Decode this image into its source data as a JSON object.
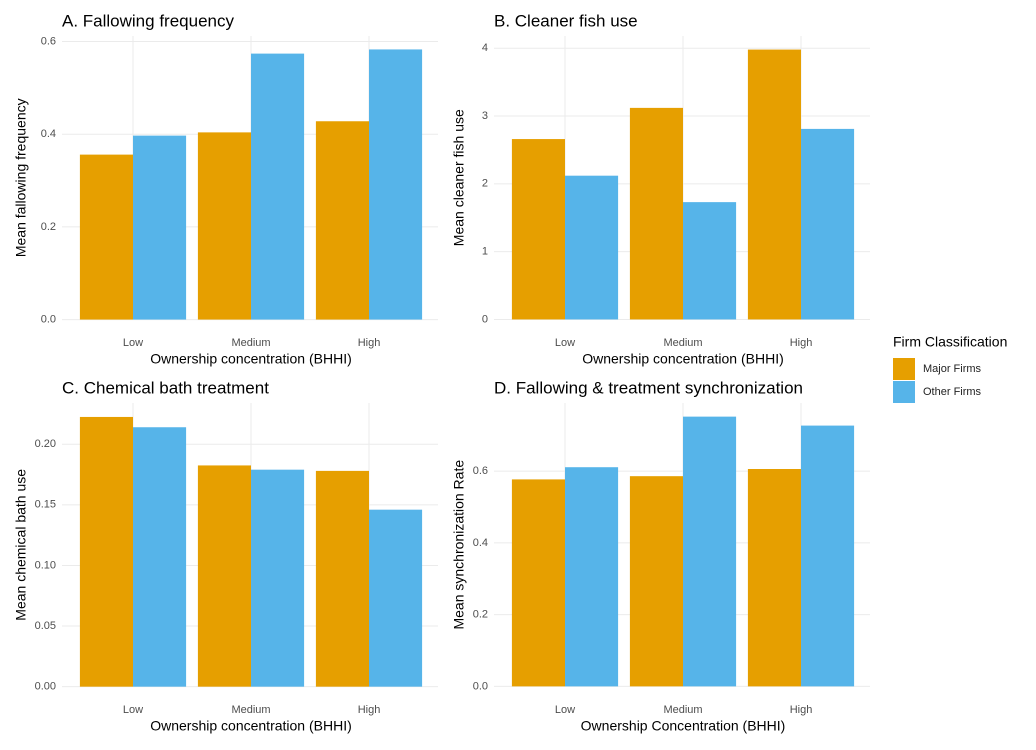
{
  "legend": {
    "title": "Firm Classification"
  },
  "chart_data": [
    {
      "type": "bar",
      "title": "A. Fallowing frequency",
      "x_label": "Ownership concentration (BHHI)",
      "y_label": "Mean fallowing frequency",
      "categories": [
        "Low",
        "Medium",
        "High"
      ],
      "series": [
        {
          "name": "Major Firms",
          "color": "#E69F00",
          "values": [
            0.356,
            0.404,
            0.428
          ]
        },
        {
          "name": "Other Firms",
          "color": "#56B4E9",
          "values": [
            0.397,
            0.574,
            0.583
          ]
        }
      ],
      "ylim": [
        -0.029,
        0.612
      ],
      "yticks": [
        {
          "value": 0,
          "label": "0.0"
        },
        0.2,
        0.4,
        0.6
      ],
      "grid": true
    },
    {
      "type": "bar",
      "title": "B. Cleaner fish use",
      "x_label": "Ownership concentration (BHHI)",
      "y_label": "Mean cleaner fish use",
      "categories": [
        "Low",
        "Medium",
        "High"
      ],
      "series": [
        {
          "name": "Major Firms",
          "color": "#E69F00",
          "values": [
            2.66,
            3.12,
            3.98
          ]
        },
        {
          "name": "Other Firms",
          "color": "#56B4E9",
          "values": [
            2.12,
            1.73,
            2.81
          ]
        }
      ],
      "ylim": [
        -0.2,
        4.18
      ],
      "yticks": [
        0,
        1,
        2,
        3,
        4
      ],
      "grid": true
    },
    {
      "type": "bar",
      "title": "C. Chemical bath treatment",
      "x_label": "Ownership concentration (BHHI)",
      "y_label": "Mean chemical bath use",
      "categories": [
        "Low",
        "Medium",
        "High"
      ],
      "series": [
        {
          "name": "Major Firms",
          "color": "#E69F00",
          "values": [
            0.2225,
            0.1825,
            0.178
          ]
        },
        {
          "name": "Other Firms",
          "color": "#56B4E9",
          "values": [
            0.214,
            0.179,
            0.146
          ]
        }
      ],
      "ylim": [
        -0.011,
        0.234
      ],
      "yticks": [
        {
          "value": 0,
          "label": "0.00"
        },
        0.05,
        {
          "value": 0.1,
          "label": "0.10"
        },
        0.15,
        {
          "value": 0.2,
          "label": "0.20"
        }
      ],
      "grid": true
    },
    {
      "type": "bar",
      "title": "D. Fallowing & treatment synchronization",
      "x_label": "Ownership Concentration (BHHI)",
      "y_label": "Mean synchronization Rate",
      "categories": [
        "Low",
        "Medium",
        "High"
      ],
      "series": [
        {
          "name": "Major Firms",
          "color": "#E69F00",
          "values": [
            0.577,
            0.586,
            0.606
          ]
        },
        {
          "name": "Other Firms",
          "color": "#56B4E9",
          "values": [
            0.611,
            0.752,
            0.727
          ]
        }
      ],
      "ylim": [
        -0.038,
        0.79
      ],
      "yticks": [
        {
          "value": 0,
          "label": "0.0"
        },
        0.2,
        0.4,
        0.6
      ],
      "grid": true
    }
  ]
}
